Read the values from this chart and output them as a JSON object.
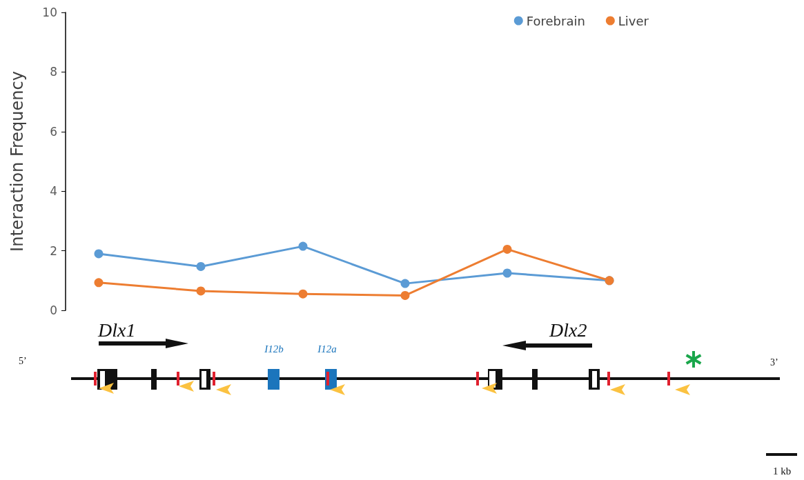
{
  "chart_data": {
    "type": "line",
    "ylabel": "Interaction Frequency",
    "categories": [
      null,
      null,
      null,
      null,
      null,
      null
    ],
    "ylim": [
      0,
      10
    ],
    "yticks": [
      0,
      2,
      4,
      6,
      8,
      10
    ],
    "series": [
      {
        "name": "Forebrain",
        "color": "#5b9bd5",
        "values": [
          1.9,
          1.47,
          2.15,
          0.9,
          1.25,
          1.0
        ]
      },
      {
        "name": "Liver",
        "color": "#ed7d31",
        "values": [
          0.93,
          0.65,
          0.55,
          0.5,
          2.05,
          1.0
        ]
      }
    ],
    "annotations": [
      "Dlx1",
      "Dlx2",
      "I12b",
      "I12a",
      "5’",
      "3’",
      "1 kb"
    ],
    "legend": "top right",
    "grid": false,
    "marker": "circle",
    "line_style": "solid",
    "tick_labels": "y"
  }
}
